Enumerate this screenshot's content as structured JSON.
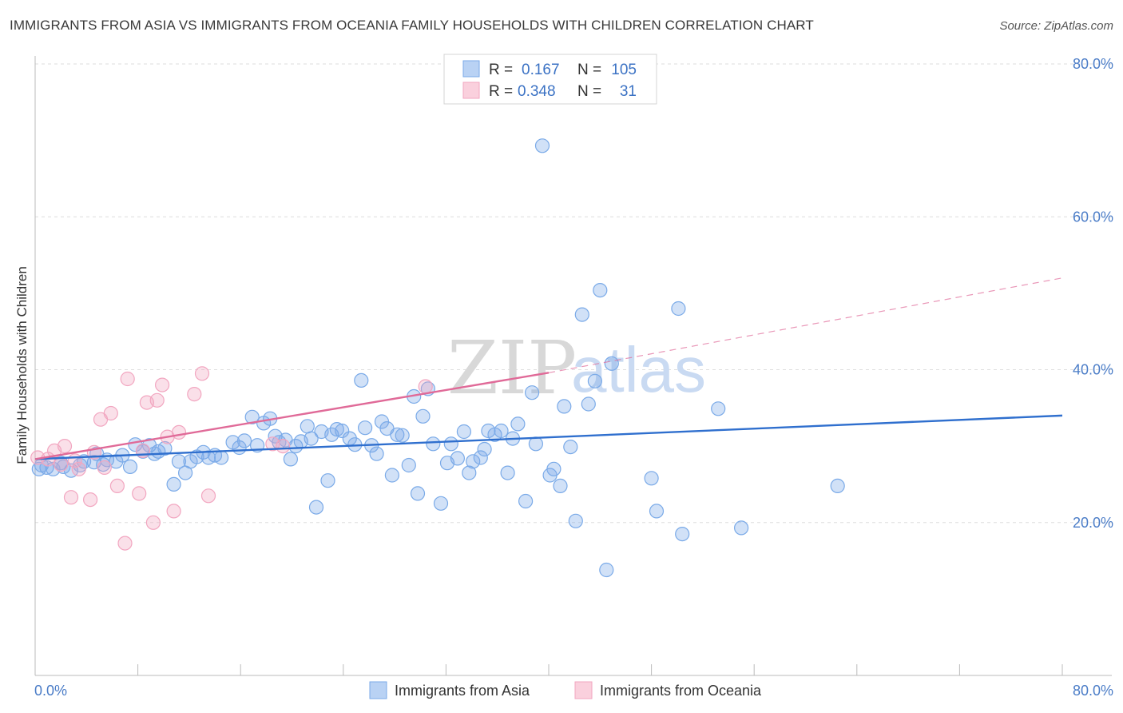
{
  "header": {
    "title": "IMMIGRANTS FROM ASIA VS IMMIGRANTS FROM OCEANIA FAMILY HOUSEHOLDS WITH CHILDREN CORRELATION CHART",
    "source": "Source: ZipAtlas.com"
  },
  "watermark": {
    "part1": "ZIP",
    "part2": "atlas"
  },
  "legend": {
    "rows": [
      {
        "r_label": "R =",
        "r_value": "0.167",
        "n_label": "N =",
        "n_value": "105"
      },
      {
        "r_label": "R =",
        "r_value": "0.348",
        "n_label": "N =",
        "n_value": "31"
      }
    ]
  },
  "chart_data": {
    "type": "scatter",
    "title": "IMMIGRANTS FROM ASIA VS IMMIGRANTS FROM OCEANIA FAMILY HOUSEHOLDS WITH CHILDREN CORRELATION CHART",
    "xlabel": "",
    "ylabel": "Family Households with Children",
    "xlim": [
      0,
      80
    ],
    "ylim": [
      0,
      80
    ],
    "x_tick_labels": [
      "0.0%",
      "80.0%"
    ],
    "y_ticks": [
      20,
      40,
      60,
      80
    ],
    "y_tick_labels": [
      "20.0%",
      "40.0%",
      "60.0%",
      "80.0%"
    ],
    "grid": true,
    "legend_position": "top-center",
    "series": [
      {
        "name": "Immigrants from Asia",
        "color": "#7aaae8",
        "trend": {
          "x": [
            0,
            80
          ],
          "y": [
            28.3,
            34.0
          ],
          "color": "#2f6fce"
        },
        "points": [
          [
            0.3,
            27.0
          ],
          [
            0.5,
            27.5
          ],
          [
            0.9,
            27.2
          ],
          [
            1.4,
            27.0
          ],
          [
            2.0,
            27.8
          ],
          [
            2.2,
            27.3
          ],
          [
            2.8,
            26.8
          ],
          [
            3.5,
            27.5
          ],
          [
            3.8,
            28.0
          ],
          [
            4.6,
            27.9
          ],
          [
            4.8,
            29.0
          ],
          [
            5.3,
            27.6
          ],
          [
            5.6,
            28.2
          ],
          [
            6.3,
            28.0
          ],
          [
            6.8,
            28.8
          ],
          [
            7.4,
            27.3
          ],
          [
            7.8,
            30.2
          ],
          [
            8.4,
            29.3
          ],
          [
            8.9,
            30.1
          ],
          [
            9.3,
            29.0
          ],
          [
            9.6,
            29.3
          ],
          [
            10.1,
            29.7
          ],
          [
            10.8,
            25.0
          ],
          [
            11.2,
            28.0
          ],
          [
            11.7,
            26.5
          ],
          [
            12.1,
            28.0
          ],
          [
            12.6,
            28.6
          ],
          [
            13.1,
            29.2
          ],
          [
            13.5,
            28.5
          ],
          [
            14.0,
            28.8
          ],
          [
            14.5,
            28.5
          ],
          [
            15.4,
            30.5
          ],
          [
            15.9,
            29.8
          ],
          [
            16.3,
            30.7
          ],
          [
            16.9,
            33.8
          ],
          [
            17.3,
            30.1
          ],
          [
            17.8,
            33.0
          ],
          [
            18.3,
            33.6
          ],
          [
            18.7,
            31.3
          ],
          [
            19.0,
            30.5
          ],
          [
            19.5,
            30.8
          ],
          [
            19.9,
            28.3
          ],
          [
            20.3,
            30.0
          ],
          [
            20.7,
            30.6
          ],
          [
            21.2,
            32.6
          ],
          [
            21.5,
            31.0
          ],
          [
            21.9,
            22.0
          ],
          [
            22.3,
            31.9
          ],
          [
            22.8,
            25.5
          ],
          [
            23.1,
            31.5
          ],
          [
            23.5,
            32.2
          ],
          [
            23.9,
            32.0
          ],
          [
            24.5,
            31.0
          ],
          [
            24.9,
            30.2
          ],
          [
            25.4,
            38.6
          ],
          [
            25.7,
            32.4
          ],
          [
            26.2,
            30.1
          ],
          [
            26.6,
            29.0
          ],
          [
            27.0,
            33.2
          ],
          [
            27.4,
            32.3
          ],
          [
            27.8,
            26.2
          ],
          [
            28.2,
            31.5
          ],
          [
            28.6,
            31.4
          ],
          [
            29.1,
            27.5
          ],
          [
            29.5,
            36.5
          ],
          [
            29.8,
            23.8
          ],
          [
            30.2,
            33.9
          ],
          [
            30.6,
            37.5
          ],
          [
            31.0,
            30.3
          ],
          [
            31.6,
            22.5
          ],
          [
            32.1,
            27.8
          ],
          [
            32.4,
            30.3
          ],
          [
            32.9,
            28.4
          ],
          [
            33.4,
            31.9
          ],
          [
            33.8,
            26.5
          ],
          [
            34.1,
            28.0
          ],
          [
            34.7,
            28.5
          ],
          [
            35.0,
            29.6
          ],
          [
            35.3,
            32.0
          ],
          [
            35.8,
            31.5
          ],
          [
            36.3,
            32.0
          ],
          [
            36.8,
            26.5
          ],
          [
            37.2,
            31.0
          ],
          [
            37.6,
            32.9
          ],
          [
            38.2,
            22.8
          ],
          [
            38.7,
            37.0
          ],
          [
            39.0,
            30.3
          ],
          [
            39.5,
            69.3
          ],
          [
            40.1,
            26.2
          ],
          [
            40.4,
            27.0
          ],
          [
            40.9,
            24.8
          ],
          [
            41.2,
            35.2
          ],
          [
            41.7,
            29.9
          ],
          [
            42.1,
            20.2
          ],
          [
            42.6,
            47.2
          ],
          [
            43.1,
            35.5
          ],
          [
            43.6,
            38.5
          ],
          [
            44.0,
            50.4
          ],
          [
            44.5,
            13.8
          ],
          [
            44.9,
            40.8
          ],
          [
            48.0,
            25.8
          ],
          [
            48.4,
            21.5
          ],
          [
            50.1,
            48.0
          ],
          [
            50.4,
            18.5
          ],
          [
            53.2,
            34.9
          ],
          [
            55.0,
            19.3
          ],
          [
            62.5,
            24.8
          ]
        ]
      },
      {
        "name": "Immigrants from Oceania",
        "color": "#f2a6c0",
        "trend": {
          "x": [
            0,
            40
          ],
          "y": [
            28.3,
            39.6
          ],
          "extended": {
            "x": [
              40,
              80
            ],
            "y": [
              39.6,
              52.0
            ]
          },
          "color": "#e06a98"
        },
        "points": [
          [
            0.2,
            28.5
          ],
          [
            1.0,
            28.3
          ],
          [
            1.5,
            29.4
          ],
          [
            2.0,
            27.6
          ],
          [
            2.3,
            30.0
          ],
          [
            2.8,
            23.3
          ],
          [
            3.1,
            28.1
          ],
          [
            3.4,
            27.0
          ],
          [
            4.3,
            23.0
          ],
          [
            4.6,
            29.2
          ],
          [
            5.1,
            33.5
          ],
          [
            5.4,
            27.2
          ],
          [
            5.9,
            34.3
          ],
          [
            6.4,
            24.8
          ],
          [
            7.0,
            17.3
          ],
          [
            7.2,
            38.8
          ],
          [
            8.1,
            23.8
          ],
          [
            8.4,
            29.4
          ],
          [
            8.7,
            35.7
          ],
          [
            9.2,
            20.0
          ],
          [
            9.5,
            36.0
          ],
          [
            9.9,
            38.0
          ],
          [
            10.3,
            31.2
          ],
          [
            10.8,
            21.5
          ],
          [
            11.2,
            31.8
          ],
          [
            12.4,
            36.8
          ],
          [
            13.0,
            39.5
          ],
          [
            13.5,
            23.5
          ],
          [
            18.5,
            30.3
          ],
          [
            19.3,
            30.0
          ],
          [
            30.4,
            37.8
          ]
        ]
      }
    ]
  },
  "bottom_legend": {
    "items": [
      {
        "label": "Immigrants from Asia",
        "color": "#b9d2f4",
        "border": "#7aaae8"
      },
      {
        "label": "Immigrants from Oceania",
        "color": "#fad0dd",
        "border": "#f2a6c0"
      }
    ]
  }
}
